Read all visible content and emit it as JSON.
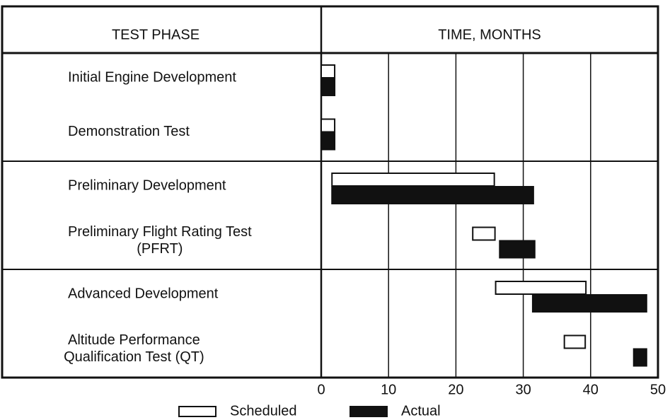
{
  "chart_data": {
    "type": "gantt",
    "header": {
      "left": "TEST PHASE",
      "right": "TIME, MONTHS"
    },
    "categories": [
      [
        "Initial Engine Development"
      ],
      [
        "Demonstration Test"
      ],
      [
        "Preliminary Development"
      ],
      [
        "Preliminary Flight Rating Test",
        "(PFRT)"
      ],
      [
        "Advanced Development"
      ],
      [
        "Altitude Performance",
        "Qualification Test (QT)"
      ]
    ],
    "series": [
      {
        "name": "Scheduled",
        "color": "#ffffff",
        "stroke": "#111111",
        "values": [
          [
            0,
            2
          ],
          [
            0,
            2
          ],
          [
            1.6,
            25.7
          ],
          [
            22.5,
            25.8
          ],
          [
            25.9,
            39.3
          ],
          [
            36.1,
            39.2
          ]
        ]
      },
      {
        "name": "Actual",
        "color": "#111111",
        "stroke": "#111111",
        "values": [
          [
            0,
            2
          ],
          [
            0,
            2
          ],
          [
            1.6,
            31.5
          ],
          [
            26.5,
            31.7
          ],
          [
            31.4,
            48.3
          ],
          [
            46.4,
            48.3
          ]
        ]
      }
    ],
    "xlim": [
      0,
      50
    ],
    "xticks": [
      0,
      10,
      20,
      30,
      40,
      50
    ],
    "grid": true
  }
}
